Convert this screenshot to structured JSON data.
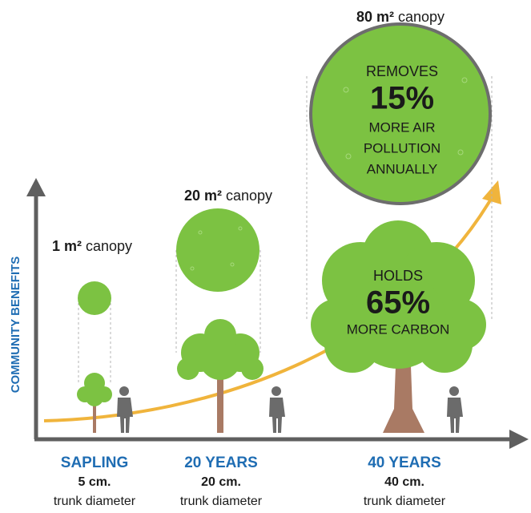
{
  "y_axis_label": "COMMUNITY BENEFITS",
  "stages": [
    {
      "canopy_area": "1 m²",
      "canopy_word": "canopy",
      "label": "SAPLING",
      "trunk": "5 cm.",
      "trunk_label": "trunk diameter"
    },
    {
      "canopy_area": "20 m²",
      "canopy_word": "canopy",
      "label": "20 YEARS",
      "trunk": "20 cm.",
      "trunk_label": "trunk diameter"
    },
    {
      "canopy_area": "80 m²",
      "canopy_word": "canopy",
      "label": "40 YEARS",
      "trunk": "40 cm.",
      "trunk_label": "trunk diameter"
    }
  ],
  "canopy_callout": {
    "lead": "REMOVES",
    "figure": "15%",
    "lines": [
      "MORE AIR",
      "POLLUTION",
      "ANNUALLY"
    ]
  },
  "tree_callout": {
    "lead": "HOLDS",
    "figure": "65%",
    "lines": [
      "MORE CARBON"
    ]
  }
}
